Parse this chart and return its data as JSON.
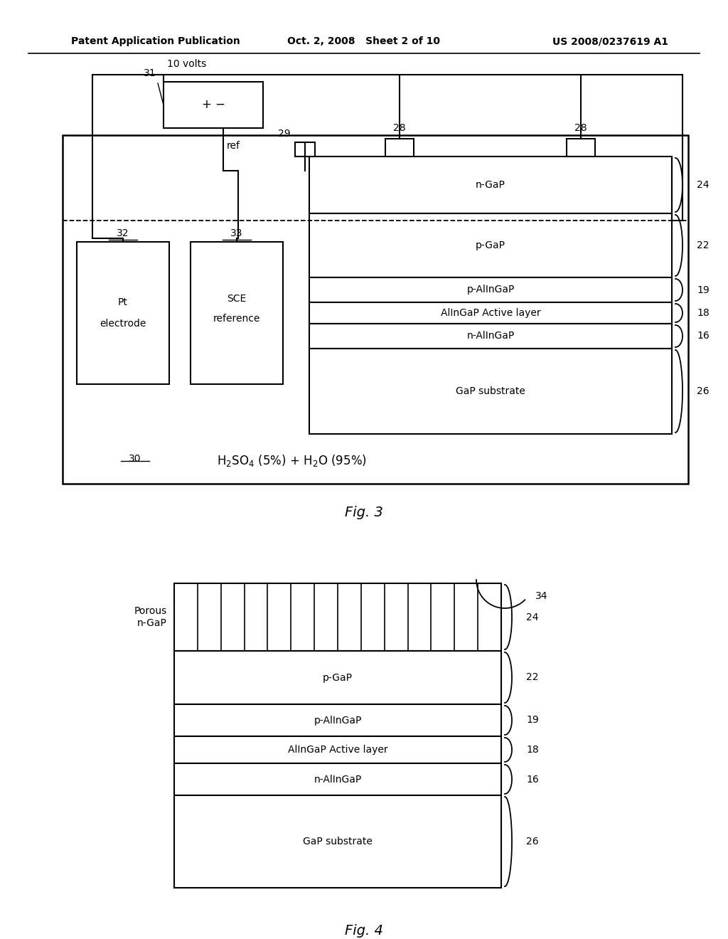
{
  "header_left": "Patent Application Publication",
  "header_mid": "Oct. 2, 2008   Sheet 2 of 10",
  "header_right": "US 2008/0237619 A1",
  "fig3_label": "Fig. 3",
  "fig4_label": "Fig. 4",
  "bg_color": "#ffffff",
  "line_color": "#000000"
}
